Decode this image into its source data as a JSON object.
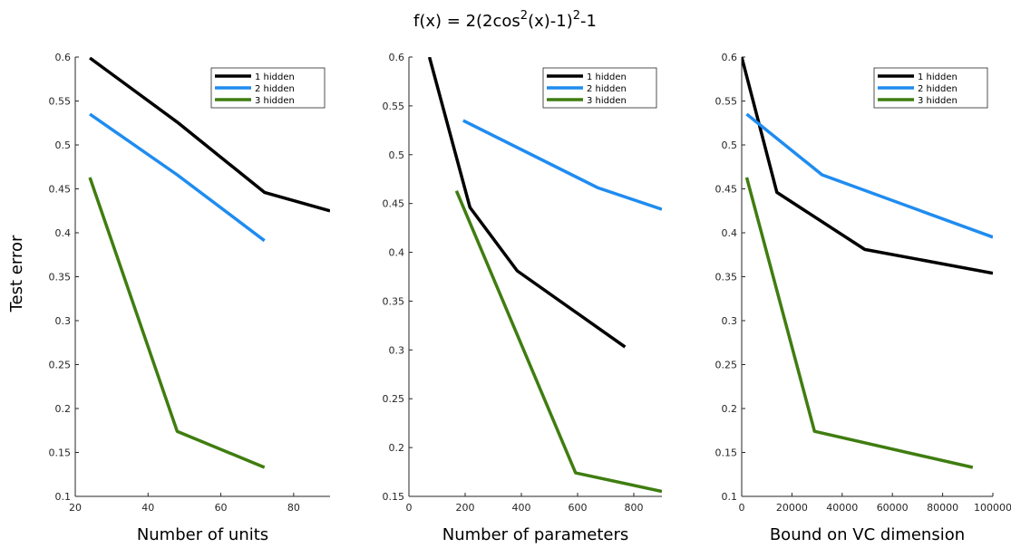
{
  "title": "f(x) = 2(2cos²(x)-1)²-1",
  "title_parts": {
    "a": "f(x) = 2(2cos",
    "sup1": "2",
    "b": "(x)-1)",
    "sup2": "2",
    "c": "-1"
  },
  "ylabel": "Test error",
  "colors": {
    "black": "#000000",
    "blue": "#1f8cf0",
    "green": "#3f7d10"
  },
  "chart_data": [
    {
      "type": "line",
      "xlabel": "Number of units",
      "ylabel": "Test error",
      "xlim": [
        20,
        90
      ],
      "ylim": [
        0.1,
        0.6
      ],
      "xticks": [
        "20",
        "40",
        "60",
        "80"
      ],
      "yticks": [
        "0.1",
        "0.15",
        "0.2",
        "0.25",
        "0.3",
        "0.35",
        "0.4",
        "0.45",
        "0.5",
        "0.55",
        "0.6"
      ],
      "legend_position": "top-right",
      "series": [
        {
          "name": "1 hidden",
          "color": "#000000",
          "x": [
            24,
            48,
            72,
            90
          ],
          "y": [
            0.599,
            0.526,
            0.446,
            0.425
          ]
        },
        {
          "name": "2 hidden",
          "color": "#1f8cf0",
          "x": [
            24,
            48,
            72
          ],
          "y": [
            0.535,
            0.466,
            0.391
          ]
        },
        {
          "name": "3 hidden",
          "color": "#3f7d10",
          "x": [
            24,
            48,
            72
          ],
          "y": [
            0.463,
            0.174,
            0.133
          ]
        }
      ]
    },
    {
      "type": "line",
      "xlabel": "Number of parameters",
      "xlim": [
        0,
        900
      ],
      "ylim": [
        0.15,
        0.6
      ],
      "xticks": [
        "0",
        "200",
        "400",
        "600",
        "800"
      ],
      "yticks": [
        "0.15",
        "0.2",
        "0.25",
        "0.3",
        "0.35",
        "0.4",
        "0.45",
        "0.5",
        "0.55",
        "0.6"
      ],
      "legend_position": "top-right",
      "series": [
        {
          "name": "1 hidden",
          "color": "#000000",
          "x": [
            73,
            217,
            385,
            769
          ],
          "y": [
            0.6,
            0.446,
            0.381,
            0.303
          ]
        },
        {
          "name": "2 hidden",
          "color": "#1f8cf0",
          "x": [
            193,
            673,
            900
          ],
          "y": [
            0.535,
            0.466,
            0.444
          ]
        },
        {
          "name": "3 hidden",
          "color": "#3f7d10",
          "x": [
            169,
            593,
            900
          ],
          "y": [
            0.463,
            0.174,
            0.155
          ]
        }
      ]
    },
    {
      "type": "line",
      "xlabel": "Bound on VC dimension",
      "xlim": [
        0,
        100000
      ],
      "ylim": [
        0.1,
        0.6
      ],
      "xticks": [
        "0",
        "20000",
        "40000",
        "60000",
        "80000",
        "100000"
      ],
      "yticks": [
        "0.1",
        "0.15",
        "0.2",
        "0.25",
        "0.3",
        "0.35",
        "0.4",
        "0.45",
        "0.5",
        "0.55",
        "0.6"
      ],
      "legend_position": "top-right",
      "series": [
        {
          "name": "1 hidden",
          "color": "#000000",
          "x": [
            0,
            14000,
            49000,
            100000
          ],
          "y": [
            0.6,
            0.446,
            0.381,
            0.354
          ]
        },
        {
          "name": "2 hidden",
          "color": "#1f8cf0",
          "x": [
            2000,
            32000,
            100000
          ],
          "y": [
            0.535,
            0.466,
            0.395
          ]
        },
        {
          "name": "3 hidden",
          "color": "#3f7d10",
          "x": [
            2000,
            29000,
            92000
          ],
          "y": [
            0.463,
            0.174,
            0.133
          ]
        }
      ]
    }
  ]
}
